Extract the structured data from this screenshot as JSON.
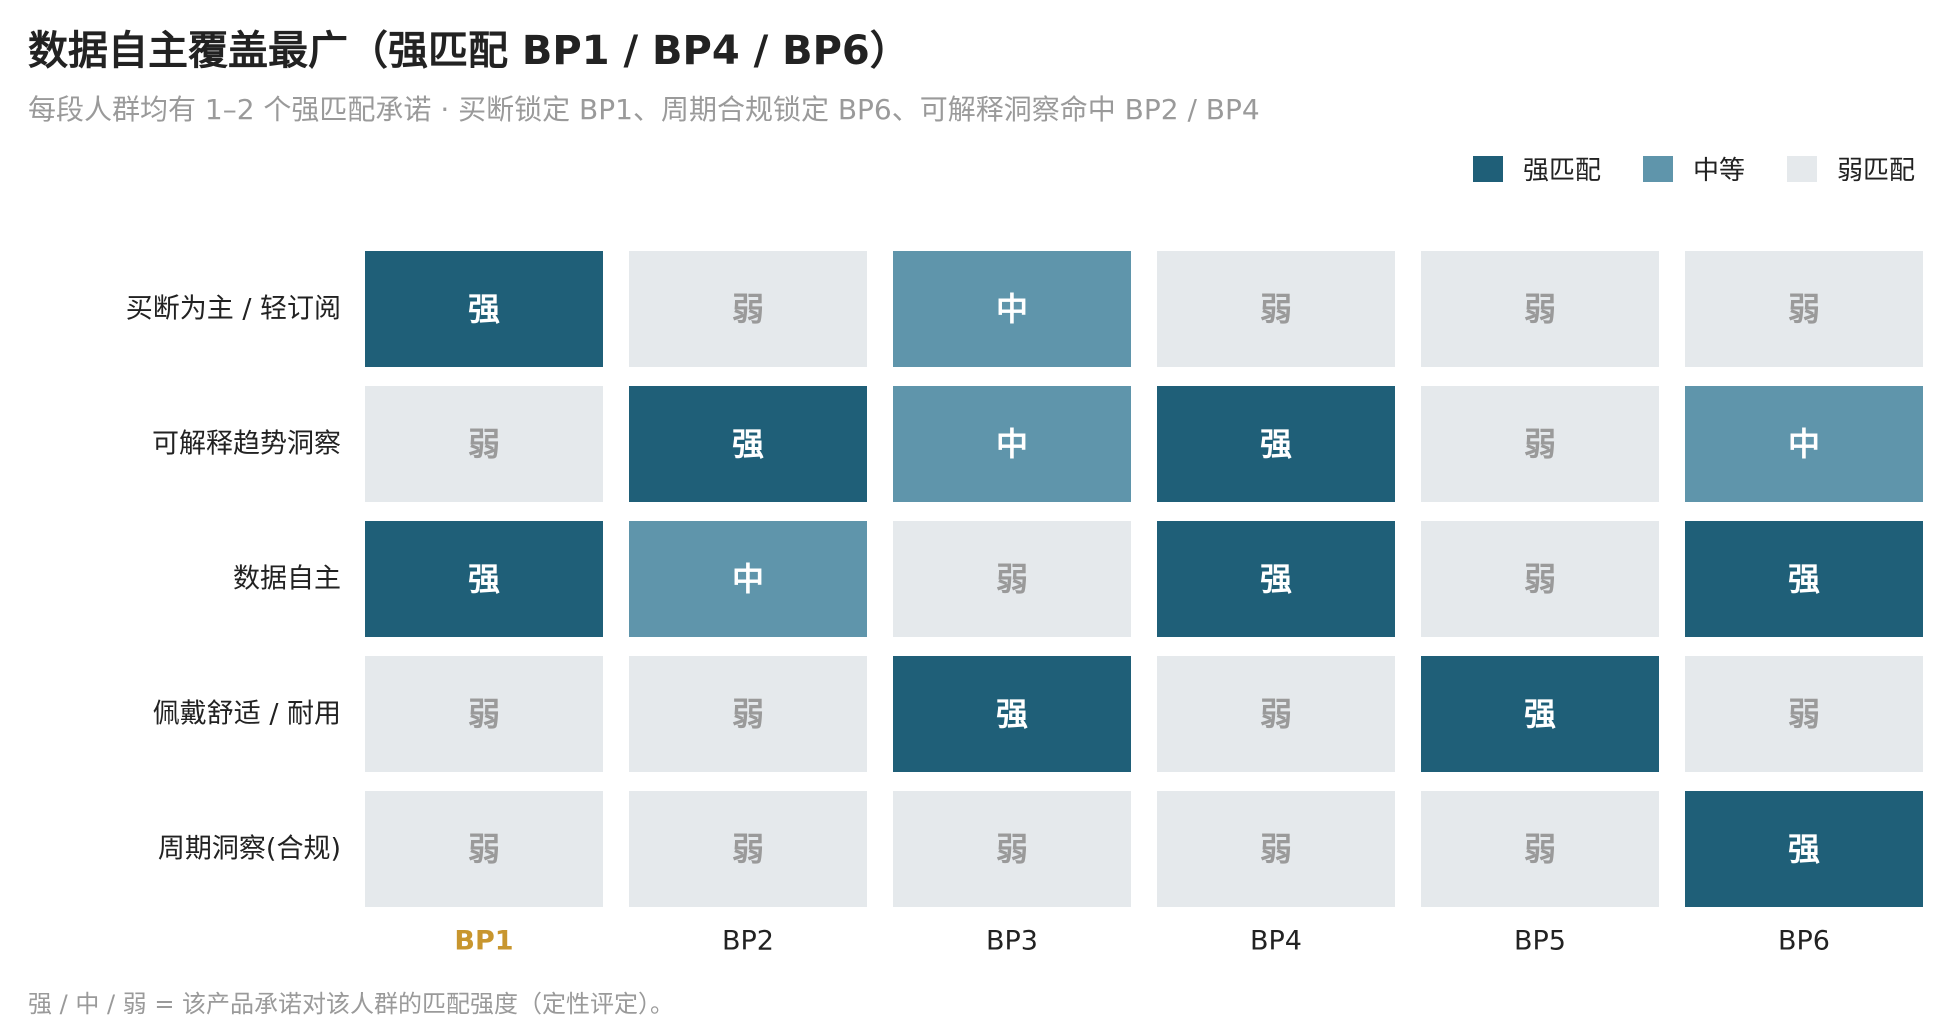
{
  "title": "数据自主覆盖最广（强匹配 BP1 / BP4 / BP6）",
  "subtitle": "每段人群均有 1–2 个强匹配承诺 · 买断锁定 BP1、周期合规锁定 BP6、可解释洞察命中 BP2 / BP4",
  "footnote": "强 / 中 / 弱 = 该产品承诺对该人群的匹配强度（定性评定）。",
  "legend": {
    "placement": "top-right",
    "items": [
      {
        "label": "强匹配",
        "level": "strong"
      },
      {
        "label": "中等",
        "level": "medium"
      },
      {
        "label": "弱匹配",
        "level": "weak"
      }
    ]
  },
  "colors": {
    "strong": "#1f5f78",
    "medium": "#5f95ab",
    "weak": "#e5e9ec",
    "strong_text": "#ffffff",
    "medium_text": "#ffffff",
    "weak_text": "#9a9a9a",
    "highlight_column_label": "#c8962e",
    "axis_label": "#222222"
  },
  "chart_data": {
    "type": "heatmap",
    "x_categories": [
      "BP1",
      "BP2",
      "BP3",
      "BP4",
      "BP5",
      "BP6"
    ],
    "highlighted_x": "BP1",
    "y_categories": [
      "买断为主 / 轻订阅",
      "可解释趋势洞察",
      "数据自主",
      "佩戴舒适 / 耐用",
      "周期洞察(合规)"
    ],
    "value_labels": {
      "strong": "强",
      "medium": "中",
      "weak": "弱"
    },
    "values": [
      [
        "strong",
        "weak",
        "medium",
        "weak",
        "weak",
        "weak"
      ],
      [
        "weak",
        "strong",
        "medium",
        "strong",
        "weak",
        "medium"
      ],
      [
        "strong",
        "medium",
        "weak",
        "strong",
        "weak",
        "strong"
      ],
      [
        "weak",
        "weak",
        "strong",
        "weak",
        "strong",
        "weak"
      ],
      [
        "weak",
        "weak",
        "weak",
        "weak",
        "weak",
        "strong"
      ]
    ]
  }
}
